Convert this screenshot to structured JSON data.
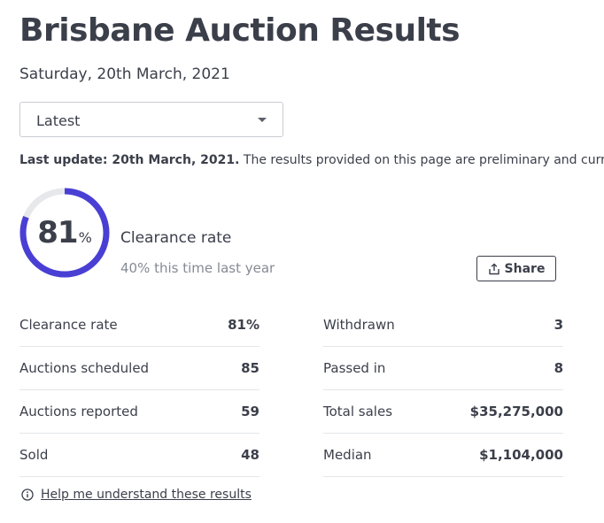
{
  "header": {
    "title": "Brisbane Auction Results",
    "date": "Saturday, 20th March, 2021"
  },
  "filter": {
    "selected": "Latest"
  },
  "update": {
    "label": "Last update: 20th March, 2021.",
    "text": " The results provided on this page are preliminary and current"
  },
  "summary": {
    "value": "81",
    "unit": "%",
    "clearance_fraction": 0.81,
    "label": "Clearance rate",
    "comparison": "40% this time last year",
    "ring_color": "#4a3fd4",
    "track_color": "#e6e8ec"
  },
  "share": {
    "label": "Share"
  },
  "stats_left": [
    {
      "label": "Clearance rate",
      "value": "81%"
    },
    {
      "label": "Auctions scheduled",
      "value": "85"
    },
    {
      "label": "Auctions reported",
      "value": "59"
    },
    {
      "label": "Sold",
      "value": "48"
    }
  ],
  "stats_right": [
    {
      "label": "Withdrawn",
      "value": "3"
    },
    {
      "label": "Passed in",
      "value": "8"
    },
    {
      "label": "Total sales",
      "value": "$35,275,000"
    },
    {
      "label": "Median",
      "value": "$1,104,000"
    }
  ],
  "help": {
    "label": "Help me understand these results"
  },
  "icons": {
    "share": "share-icon",
    "info": "info-icon",
    "caret": "chevron-down-icon"
  }
}
